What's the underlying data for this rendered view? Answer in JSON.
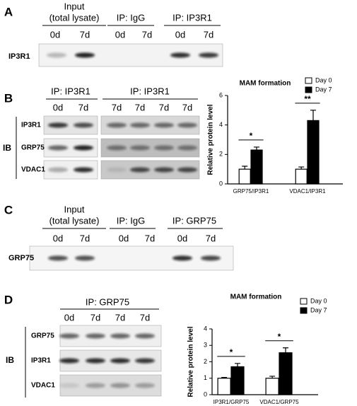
{
  "panel_letters": [
    "A",
    "B",
    "C",
    "D"
  ],
  "panel_a": {
    "headers": [
      "Input",
      "(total lysate)",
      "IP: IgG",
      "IP: IP3R1"
    ],
    "lanes": [
      "0d",
      "7d",
      "0d",
      "7d",
      "0d",
      "7d"
    ],
    "rows": [
      "IP3R1"
    ]
  },
  "panel_b": {
    "headers": [
      "IP: IP3R1",
      "IP: IP3R1"
    ],
    "lanes": [
      "0d",
      "7d",
      "7d",
      "7d",
      "7d",
      "7d"
    ],
    "rows": [
      "IP3R1",
      "GRP75",
      "VDAC1"
    ],
    "ib": "IB"
  },
  "panel_c": {
    "headers": [
      "Input",
      "(total lysate)",
      "IP: IgG",
      "IP: GRP75"
    ],
    "lanes": [
      "0d",
      "7d",
      "0d",
      "7d",
      "0d",
      "7d"
    ],
    "rows": [
      "GRP75"
    ]
  },
  "panel_d": {
    "headers": [
      "IP: GRP75"
    ],
    "lanes": [
      "0d",
      "7d",
      "7d",
      "7d"
    ],
    "rows": [
      "GRP75",
      "IP3R1",
      "VDAC1"
    ],
    "ib": "IB"
  },
  "chart_data": [
    {
      "type": "bar",
      "title": "MAM formation",
      "y_label": "Relative protein level",
      "categories": [
        "GRP75/IP3R1",
        "VDAC1/IP3R1"
      ],
      "series": [
        {
          "name": "Day 0",
          "color": "#ffffff",
          "values": [
            1,
            1
          ],
          "errors": [
            0.2,
            0.15
          ]
        },
        {
          "name": "Day 7",
          "color": "#000000",
          "values": [
            2.3,
            4.3
          ],
          "errors": [
            0.2,
            0.7
          ]
        }
      ],
      "annotations": [
        "*",
        "**"
      ],
      "ylim": [
        0,
        6
      ],
      "yticks": [
        0,
        2,
        4,
        6
      ]
    },
    {
      "type": "bar",
      "title": "MAM formation",
      "y_label": "Relative protein level",
      "categories": [
        "IP3R1/GRP75",
        "VDAC1/GRP75"
      ],
      "series": [
        {
          "name": "Day 0",
          "color": "#ffffff",
          "values": [
            1,
            1
          ],
          "errors": [
            0.05,
            0.12
          ]
        },
        {
          "name": "Day 7",
          "color": "#000000",
          "values": [
            1.7,
            2.55
          ],
          "errors": [
            0.2,
            0.3
          ]
        }
      ],
      "annotations": [
        "*",
        "*"
      ],
      "ylim": [
        0,
        4
      ],
      "yticks": [
        0,
        1,
        2,
        3,
        4
      ]
    }
  ]
}
